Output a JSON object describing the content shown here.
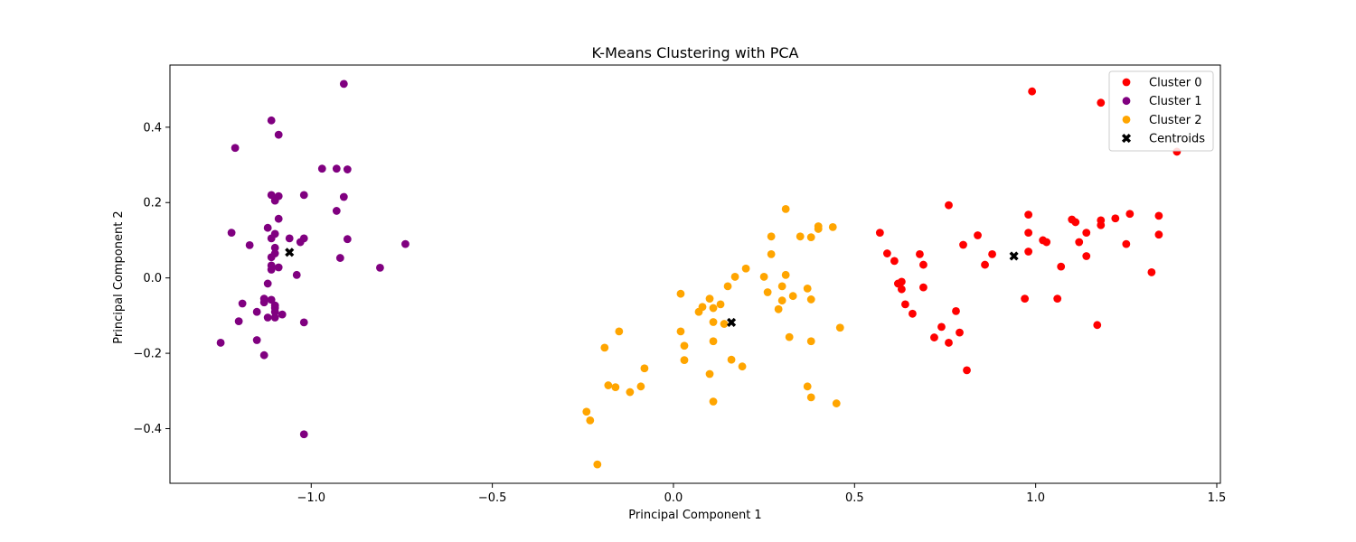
{
  "chart_data": {
    "type": "scatter",
    "title": "K-Means Clustering with PCA",
    "xlabel": "Principal Component 1",
    "ylabel": "Principal Component 2",
    "xlim": [
      -1.39,
      1.51
    ],
    "ylim": [
      -0.545,
      0.565
    ],
    "x_ticks": [
      -1.0,
      -0.5,
      0.0,
      0.5,
      1.0,
      1.5
    ],
    "x_tick_labels": [
      "−1.0",
      "−0.5",
      "0.0",
      "0.5",
      "1.0",
      "1.5"
    ],
    "y_ticks": [
      -0.4,
      -0.2,
      0.0,
      0.2,
      0.4
    ],
    "y_tick_labels": [
      "−0.4",
      "−0.2",
      "0.0",
      "0.2",
      "0.4"
    ],
    "grid": false,
    "legend_position": "top-right",
    "series": [
      {
        "name": "Cluster 0",
        "color": "#ff0000",
        "marker": "circle",
        "points": [
          [
            0.99,
            0.495
          ],
          [
            1.18,
            0.465
          ],
          [
            1.39,
            0.335
          ],
          [
            0.57,
            0.12
          ],
          [
            0.59,
            0.065
          ],
          [
            0.61,
            0.045
          ],
          [
            0.62,
            -0.015
          ],
          [
            0.63,
            -0.01
          ],
          [
            0.63,
            -0.03
          ],
          [
            0.64,
            -0.07
          ],
          [
            0.66,
            -0.095
          ],
          [
            0.68,
            0.063
          ],
          [
            0.69,
            0.035
          ],
          [
            0.69,
            -0.025
          ],
          [
            0.72,
            -0.158
          ],
          [
            0.74,
            -0.13
          ],
          [
            0.76,
            0.193
          ],
          [
            0.76,
            -0.172
          ],
          [
            0.78,
            -0.088
          ],
          [
            0.79,
            -0.145
          ],
          [
            0.8,
            0.088
          ],
          [
            0.81,
            -0.245
          ],
          [
            0.84,
            0.113
          ],
          [
            0.86,
            0.035
          ],
          [
            0.88,
            0.063
          ],
          [
            0.97,
            -0.055
          ],
          [
            0.98,
            0.168
          ],
          [
            0.98,
            0.12
          ],
          [
            0.98,
            0.07
          ],
          [
            1.02,
            0.1
          ],
          [
            1.03,
            0.095
          ],
          [
            1.06,
            -0.055
          ],
          [
            1.07,
            0.03
          ],
          [
            1.1,
            0.155
          ],
          [
            1.11,
            0.148
          ],
          [
            1.12,
            0.095
          ],
          [
            1.14,
            0.12
          ],
          [
            1.14,
            0.058
          ],
          [
            1.17,
            -0.125
          ],
          [
            1.18,
            0.153
          ],
          [
            1.18,
            0.14
          ],
          [
            1.22,
            0.158
          ],
          [
            1.25,
            0.09
          ],
          [
            1.26,
            0.17
          ],
          [
            1.32,
            0.015
          ],
          [
            1.34,
            0.165
          ],
          [
            1.34,
            0.115
          ]
        ]
      },
      {
        "name": "Cluster 1",
        "color": "#800080",
        "marker": "circle",
        "points": [
          [
            -0.91,
            0.515
          ],
          [
            -1.11,
            0.418
          ],
          [
            -1.09,
            0.38
          ],
          [
            -1.21,
            0.345
          ],
          [
            -0.97,
            0.29
          ],
          [
            -0.93,
            0.29
          ],
          [
            -0.9,
            0.288
          ],
          [
            -1.11,
            0.22
          ],
          [
            -1.09,
            0.217
          ],
          [
            -1.1,
            0.205
          ],
          [
            -1.02,
            0.22
          ],
          [
            -0.91,
            0.215
          ],
          [
            -0.93,
            0.178
          ],
          [
            -1.09,
            0.157
          ],
          [
            -1.12,
            0.133
          ],
          [
            -1.22,
            0.12
          ],
          [
            -1.1,
            0.117
          ],
          [
            -1.11,
            0.105
          ],
          [
            -1.06,
            0.105
          ],
          [
            -1.02,
            0.105
          ],
          [
            -1.03,
            0.095
          ],
          [
            -0.9,
            0.103
          ],
          [
            -1.17,
            0.087
          ],
          [
            -1.1,
            0.08
          ],
          [
            -0.74,
            0.09
          ],
          [
            -1.1,
            0.065
          ],
          [
            -1.11,
            0.055
          ],
          [
            -0.92,
            0.053
          ],
          [
            -1.11,
            0.033
          ],
          [
            -1.09,
            0.028
          ],
          [
            -1.11,
            0.022
          ],
          [
            -0.81,
            0.027
          ],
          [
            -1.04,
            0.008
          ],
          [
            -1.12,
            -0.015
          ],
          [
            -1.13,
            -0.055
          ],
          [
            -1.13,
            -0.065
          ],
          [
            -1.11,
            -0.058
          ],
          [
            -1.19,
            -0.068
          ],
          [
            -1.1,
            -0.073
          ],
          [
            -1.1,
            -0.08
          ],
          [
            -1.1,
            -0.09
          ],
          [
            -1.15,
            -0.09
          ],
          [
            -1.08,
            -0.097
          ],
          [
            -1.12,
            -0.105
          ],
          [
            -1.1,
            -0.105
          ],
          [
            -1.2,
            -0.115
          ],
          [
            -1.02,
            -0.118
          ],
          [
            -1.15,
            -0.165
          ],
          [
            -1.25,
            -0.172
          ],
          [
            -1.13,
            -0.205
          ],
          [
            -1.02,
            -0.415
          ]
        ]
      },
      {
        "name": "Cluster 2",
        "color": "#ffa500",
        "marker": "circle",
        "points": [
          [
            0.31,
            0.183
          ],
          [
            0.4,
            0.137
          ],
          [
            0.44,
            0.135
          ],
          [
            0.4,
            0.13
          ],
          [
            0.27,
            0.11
          ],
          [
            0.35,
            0.11
          ],
          [
            0.38,
            0.108
          ],
          [
            0.27,
            0.063
          ],
          [
            0.2,
            0.025
          ],
          [
            0.25,
            0.003
          ],
          [
            0.17,
            0.003
          ],
          [
            0.31,
            0.008
          ],
          [
            0.15,
            -0.022
          ],
          [
            0.3,
            -0.022
          ],
          [
            0.37,
            -0.028
          ],
          [
            0.26,
            -0.038
          ],
          [
            0.02,
            -0.042
          ],
          [
            0.33,
            -0.048
          ],
          [
            0.1,
            -0.055
          ],
          [
            0.3,
            -0.06
          ],
          [
            0.38,
            -0.057
          ],
          [
            0.13,
            -0.07
          ],
          [
            0.08,
            -0.077
          ],
          [
            0.11,
            -0.08
          ],
          [
            0.07,
            -0.09
          ],
          [
            0.29,
            -0.083
          ],
          [
            0.11,
            -0.117
          ],
          [
            0.14,
            -0.122
          ],
          [
            0.46,
            -0.132
          ],
          [
            0.02,
            -0.142
          ],
          [
            -0.15,
            -0.142
          ],
          [
            0.32,
            -0.157
          ],
          [
            0.11,
            -0.168
          ],
          [
            0.38,
            -0.168
          ],
          [
            0.03,
            -0.18
          ],
          [
            -0.19,
            -0.185
          ],
          [
            0.16,
            -0.217
          ],
          [
            0.03,
            -0.218
          ],
          [
            0.19,
            -0.235
          ],
          [
            -0.08,
            -0.24
          ],
          [
            0.1,
            -0.255
          ],
          [
            -0.18,
            -0.285
          ],
          [
            -0.09,
            -0.288
          ],
          [
            -0.16,
            -0.29
          ],
          [
            0.37,
            -0.288
          ],
          [
            -0.12,
            -0.303
          ],
          [
            0.38,
            -0.317
          ],
          [
            0.11,
            -0.328
          ],
          [
            0.45,
            -0.333
          ],
          [
            -0.24,
            -0.355
          ],
          [
            -0.23,
            -0.378
          ],
          [
            -0.21,
            -0.495
          ]
        ]
      },
      {
        "name": "Centroids",
        "color": "#000000",
        "marker": "x",
        "points": [
          [
            -1.06,
            0.068
          ],
          [
            0.16,
            -0.118
          ],
          [
            0.94,
            0.058
          ]
        ]
      }
    ]
  }
}
